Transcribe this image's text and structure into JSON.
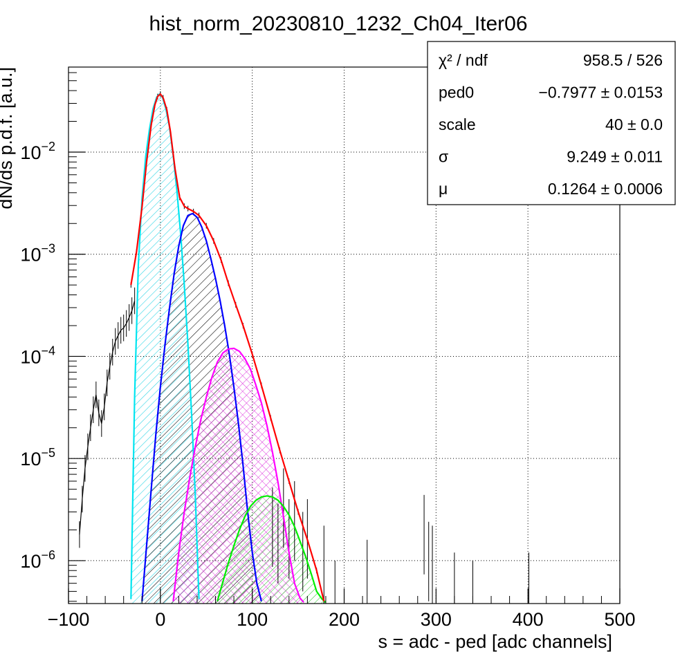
{
  "chart_data": {
    "type": "line",
    "title": "hist_norm_20230810_1232_Ch04_Iter06",
    "xlabel": "s = adc - ped [adc channels]",
    "ylabel": "dN/ds p.d.f. [a.u.]",
    "x_range": [
      -100,
      500
    ],
    "y_range": [
      3.8e-07,
      0.068
    ],
    "y_log": true,
    "grid": true,
    "x_ticks": [
      {
        "value": -100,
        "label": "−100"
      },
      {
        "value": 0,
        "label": "0"
      },
      {
        "value": 100,
        "label": "100"
      },
      {
        "value": 200,
        "label": "200"
      },
      {
        "value": 300,
        "label": "300"
      },
      {
        "value": 400,
        "label": "400"
      },
      {
        "value": 500,
        "label": "500"
      }
    ],
    "y_ticks": [
      {
        "value": 1e-06,
        "base": "10",
        "exp": "−6"
      },
      {
        "value": 1e-05,
        "base": "10",
        "exp": "−5"
      },
      {
        "value": 0.0001,
        "base": "10",
        "exp": "−4"
      },
      {
        "value": 0.001,
        "base": "10",
        "exp": "−3"
      },
      {
        "value": 0.01,
        "base": "10",
        "exp": "−2"
      }
    ],
    "stats_box": [
      {
        "name": "χ² / ndf",
        "value": "958.5 / 526"
      },
      {
        "name": "ped0",
        "value": "−0.7977 ± 0.0153"
      },
      {
        "name": "scale",
        "value": "40 ± 0.0"
      },
      {
        "name": "σ",
        "value": "9.249 ± 0.011"
      },
      {
        "name": "μ",
        "value": "0.1264 ± 0.0006"
      }
    ],
    "histogram": {
      "color": "#000000",
      "points": [
        [
          -88,
          1.8e-06
        ],
        [
          -85,
          4e-06
        ],
        [
          -82,
          8e-06
        ],
        [
          -79,
          1.3e-05
        ],
        [
          -76,
          2e-05
        ],
        [
          -73,
          3e-05
        ],
        [
          -70,
          4.2e-05
        ],
        [
          -67,
          2.8e-05
        ],
        [
          -64,
          2.2e-05
        ],
        [
          -61,
          3.2e-05
        ],
        [
          -58,
          5.5e-05
        ],
        [
          -55,
          8e-05
        ],
        [
          -52,
          0.00011
        ],
        [
          -49,
          0.00014
        ],
        [
          -46,
          0.00016
        ],
        [
          -43,
          0.00018
        ],
        [
          -40,
          0.00019
        ],
        [
          -37,
          0.00021
        ],
        [
          -34,
          0.00024
        ],
        [
          -31,
          0.00028
        ],
        [
          -28,
          0.00035
        ]
      ]
    },
    "series": [
      {
        "color": "#ff0000",
        "fill": "none",
        "x": [
          -32,
          -26,
          -20,
          -15,
          -10,
          -6,
          -3,
          0,
          3,
          7,
          11,
          16,
          21,
          26,
          30,
          36,
          42,
          50,
          58,
          66,
          74,
          82,
          90,
          100,
          110,
          120,
          130,
          140,
          150,
          160,
          170,
          178
        ],
        "y": [
          0.0005,
          0.00105,
          0.0029,
          0.008,
          0.0185,
          0.029,
          0.035,
          0.037,
          0.034,
          0.026,
          0.0158,
          0.0068,
          0.0036,
          0.00295,
          0.0028,
          0.00262,
          0.0024,
          0.0019,
          0.00135,
          0.00088,
          0.00052,
          0.00032,
          0.0002,
          0.000105,
          5.2e-05,
          2.5e-05,
          1.2e-05,
          6e-06,
          3e-06,
          1.6e-06,
          8e-07,
          4e-07
        ]
      },
      {
        "color": "#00e5f0",
        "fill": "#3fd8e8",
        "x": [
          -32,
          -28,
          -24,
          -20,
          -16,
          -12,
          -8,
          -4,
          -1,
          2,
          6,
          10,
          14,
          18,
          22,
          26,
          30,
          34,
          38,
          42
        ],
        "y": [
          4.2e-07,
          4e-05,
          0.0008,
          0.0035,
          0.009,
          0.0165,
          0.0265,
          0.0345,
          0.037,
          0.035,
          0.0265,
          0.0175,
          0.0092,
          0.0042,
          0.0016,
          0.0005,
          0.00013,
          2.7e-05,
          4.4e-06,
          4.2e-07
        ]
      },
      {
        "color": "#0000ff",
        "fill": "#000000",
        "x": [
          -20,
          -15,
          -10,
          -5,
          0,
          5,
          10,
          15,
          20,
          25,
          30,
          35,
          40,
          45,
          50,
          55,
          60,
          65,
          70,
          75,
          80,
          85,
          90,
          95,
          100,
          105,
          110
        ],
        "y": [
          4e-07,
          1.4e-06,
          5e-06,
          1.7e-05,
          5e-05,
          0.00013,
          0.0003,
          0.00065,
          0.0012,
          0.0019,
          0.0024,
          0.0025,
          0.0023,
          0.00185,
          0.00135,
          0.0009,
          0.00058,
          0.00035,
          0.0002,
          0.000105,
          5e-05,
          2.2e-05,
          8.5e-06,
          3e-06,
          1.2e-06,
          6e-07,
          4e-07
        ]
      },
      {
        "color": "#ff00ff",
        "fill": "#dd33dd",
        "x": [
          14,
          20,
          26,
          32,
          38,
          44,
          50,
          56,
          62,
          68,
          74,
          80,
          86,
          92,
          98,
          104,
          110,
          116,
          122,
          128,
          134,
          140,
          146,
          152,
          156
        ],
        "y": [
          4e-07,
          1.2e-06,
          3e-06,
          6.5e-06,
          1.3e-05,
          2.4e-05,
          4e-05,
          6.2e-05,
          8.8e-05,
          0.000108,
          0.000118,
          0.00012,
          0.000112,
          9.5e-05,
          7.5e-05,
          5.2e-05,
          3.5e-05,
          2.1e-05,
          1.15e-05,
          5.8e-06,
          2.7e-06,
          1.2e-06,
          6e-07,
          4.3e-07,
          3.9e-07
        ]
      },
      {
        "color": "#00ee00",
        "fill": "#33cc33",
        "x": [
          62,
          68,
          74,
          80,
          86,
          92,
          98,
          104,
          110,
          116,
          122,
          128,
          134,
          140,
          146,
          152,
          158,
          164,
          170,
          176,
          180
        ],
        "y": [
          4e-07,
          6.2e-07,
          9.5e-07,
          1.4e-06,
          2e-06,
          2.7e-06,
          3.4e-06,
          3.9e-06,
          4.2e-06,
          4.3e-06,
          4.2e-06,
          3.9e-06,
          3.4e-06,
          2.8e-06,
          2.15e-06,
          1.55e-06,
          1.1e-06,
          7.5e-07,
          5e-07,
          4.2e-07,
          3.9e-07
        ]
      }
    ]
  }
}
